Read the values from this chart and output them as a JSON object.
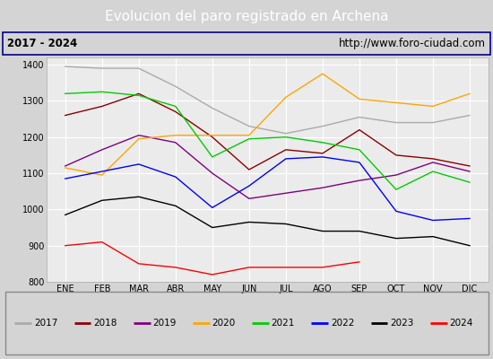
{
  "title": "Evolucion del paro registrado en Archena",
  "subtitle_left": "2017 - 2024",
  "subtitle_right": "http://www.foro-ciudad.com",
  "months": [
    "ENE",
    "FEB",
    "MAR",
    "ABR",
    "MAY",
    "JUN",
    "JUL",
    "AGO",
    "SEP",
    "OCT",
    "NOV",
    "DIC"
  ],
  "ylim": [
    800,
    1420
  ],
  "yticks": [
    800,
    900,
    1000,
    1100,
    1200,
    1300,
    1400
  ],
  "series": {
    "2017": {
      "color": "#aaaaaa",
      "values": [
        1395,
        1390,
        1390,
        1340,
        1280,
        1230,
        1210,
        1230,
        1255,
        1240,
        1240,
        1260
      ]
    },
    "2018": {
      "color": "#8b0000",
      "values": [
        1260,
        1285,
        1320,
        1270,
        1200,
        1110,
        1165,
        1155,
        1220,
        1150,
        1140,
        1120
      ]
    },
    "2019": {
      "color": "#800080",
      "values": [
        1120,
        1165,
        1205,
        1185,
        1100,
        1030,
        1045,
        1060,
        1080,
        1095,
        1130,
        1105
      ]
    },
    "2020": {
      "color": "#ffa500",
      "values": [
        1115,
        1095,
        1195,
        1205,
        1205,
        1205,
        1310,
        1375,
        1305,
        1295,
        1285,
        1320
      ]
    },
    "2021": {
      "color": "#00cc00",
      "values": [
        1320,
        1325,
        1315,
        1285,
        1145,
        1195,
        1200,
        1185,
        1165,
        1055,
        1105,
        1075
      ]
    },
    "2022": {
      "color": "#0000ff",
      "values": [
        1085,
        1105,
        1125,
        1090,
        1005,
        1065,
        1140,
        1145,
        1130,
        995,
        970,
        975
      ]
    },
    "2023": {
      "color": "#000000",
      "values": [
        985,
        1025,
        1035,
        1010,
        950,
        965,
        960,
        940,
        940,
        920,
        925,
        900
      ]
    },
    "2024": {
      "color": "#ff0000",
      "values": [
        900,
        910,
        850,
        840,
        820,
        840,
        840,
        840,
        855,
        null,
        null,
        null
      ]
    }
  },
  "title_bg_color": "#4472c4",
  "title_font_color": "#ffffff",
  "plot_bg_color": "#ebebeb",
  "grid_color": "#ffffff",
  "subtitle_bg_color": "#d4d4d4",
  "border_color": "#00008b",
  "legend_bg_color": "#e0e0e0"
}
